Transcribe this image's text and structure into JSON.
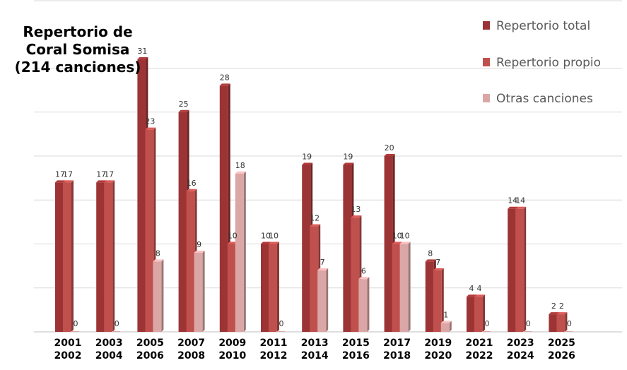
{
  "chart_data": {
    "type": "bar",
    "title_lines": [
      "Repertorio de",
      "Coral Somisa",
      "(214 canciones)"
    ],
    "categories": [
      [
        "2001",
        "2002"
      ],
      [
        "2003",
        "2004"
      ],
      [
        "2005",
        "2006"
      ],
      [
        "2007",
        "2008"
      ],
      [
        "2009",
        "2010"
      ],
      [
        "2011",
        "2012"
      ],
      [
        "2013",
        "2014"
      ],
      [
        "2015",
        "2016"
      ],
      [
        "2017",
        "2018"
      ],
      [
        "2019",
        "2020"
      ],
      [
        "2021",
        "2022"
      ],
      [
        "2023",
        "2024"
      ],
      [
        "2025",
        "2026"
      ]
    ],
    "series": [
      {
        "name": "Repertorio total",
        "values": [
          17,
          17,
          31,
          25,
          28,
          10,
          19,
          19,
          20,
          8,
          4,
          14,
          2
        ]
      },
      {
        "name": "Repertorio propio",
        "values": [
          17,
          17,
          23,
          16,
          10,
          10,
          12,
          13,
          10,
          7,
          4,
          14,
          2
        ]
      },
      {
        "name": "Otras canciones",
        "values": [
          0,
          0,
          8,
          9,
          18,
          0,
          7,
          6,
          10,
          1,
          0,
          0,
          0
        ]
      }
    ],
    "ylim": [
      0,
      35
    ],
    "grid": true,
    "legend_position": "top-right",
    "colors": {
      "Repertorio total": "#9c3334",
      "Repertorio propio": "#c0504d",
      "Otras canciones": "#dba7a6"
    }
  }
}
